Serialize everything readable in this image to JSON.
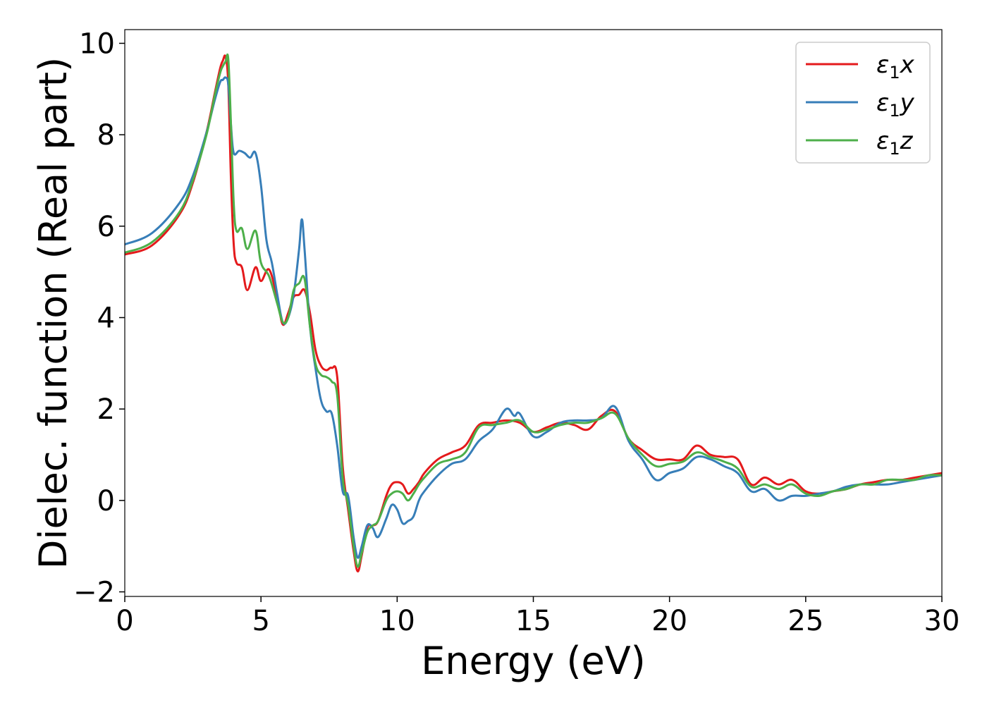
{
  "chart_data": {
    "type": "line",
    "title": "",
    "xlabel": "Energy (eV)",
    "ylabel": "Dielec. function (Real part)",
    "xlim": [
      0,
      30
    ],
    "ylim": [
      -2.1,
      10.3
    ],
    "xticks": [
      0,
      5,
      10,
      15,
      20,
      25,
      30
    ],
    "yticks": [
      -2,
      0,
      2,
      4,
      6,
      8,
      10
    ],
    "xtick_labels": [
      "0",
      "5",
      "10",
      "15",
      "20",
      "25",
      "30"
    ],
    "ytick_labels": [
      "−2",
      "0",
      "2",
      "4",
      "6",
      "8",
      "10"
    ],
    "grid": false,
    "legend": "top-right",
    "series": [
      {
        "name": "ε1x",
        "legend_main": "ε",
        "legend_sub": "1",
        "legend_var": "x",
        "color": "#e41a1c",
        "x": [
          0,
          1,
          2,
          2.5,
          3,
          3.3,
          3.5,
          3.6,
          3.7,
          3.8,
          3.9,
          4.0,
          4.1,
          4.3,
          4.5,
          4.8,
          5.0,
          5.3,
          5.6,
          5.8,
          6.0,
          6.2,
          6.4,
          6.6,
          6.8,
          7.0,
          7.2,
          7.4,
          7.6,
          7.8,
          8.0,
          8.2,
          8.4,
          8.55,
          8.7,
          8.9,
          9.1,
          9.3,
          9.6,
          9.8,
          10.0,
          10.2,
          10.4,
          10.6,
          10.8,
          11.0,
          11.5,
          12.0,
          12.5,
          13.0,
          13.5,
          14.0,
          14.5,
          15.0,
          15.5,
          16.0,
          16.5,
          17.0,
          17.5,
          18.0,
          18.5,
          19.0,
          19.5,
          20.0,
          20.5,
          21.0,
          21.5,
          22.0,
          22.5,
          23.0,
          23.5,
          24.0,
          24.5,
          25.0,
          25.5,
          26.0,
          26.5,
          27.0,
          27.5,
          28.0,
          28.5,
          29.0,
          29.5,
          30.0
        ],
        "y": [
          5.38,
          5.58,
          6.25,
          6.95,
          8.05,
          8.9,
          9.45,
          9.62,
          9.7,
          9.1,
          7.0,
          5.6,
          5.2,
          5.1,
          4.6,
          5.1,
          4.8,
          5.05,
          4.4,
          3.85,
          4.1,
          4.45,
          4.5,
          4.6,
          4.1,
          3.3,
          2.95,
          2.85,
          2.9,
          2.7,
          0.75,
          -0.2,
          -1.1,
          -1.55,
          -1.2,
          -0.6,
          -0.55,
          -0.45,
          0.1,
          0.35,
          0.4,
          0.35,
          0.15,
          0.25,
          0.4,
          0.6,
          0.9,
          1.05,
          1.2,
          1.65,
          1.7,
          1.75,
          1.7,
          1.5,
          1.6,
          1.7,
          1.65,
          1.55,
          1.85,
          1.95,
          1.35,
          1.1,
          0.9,
          0.9,
          0.9,
          1.2,
          1.0,
          0.95,
          0.9,
          0.35,
          0.5,
          0.35,
          0.45,
          0.2,
          0.15,
          0.2,
          0.25,
          0.35,
          0.4,
          0.45,
          0.45,
          0.5,
          0.55,
          0.6
        ]
      },
      {
        "name": "ε1y",
        "legend_main": "ε",
        "legend_sub": "1",
        "legend_var": "y",
        "color": "#377eb8",
        "x": [
          0,
          1,
          2,
          2.5,
          3,
          3.3,
          3.5,
          3.6,
          3.7,
          3.8,
          3.9,
          4.0,
          4.2,
          4.4,
          4.6,
          4.8,
          5.0,
          5.2,
          5.4,
          5.6,
          5.8,
          6.0,
          6.2,
          6.4,
          6.5,
          6.6,
          6.8,
          7.0,
          7.2,
          7.4,
          7.6,
          7.8,
          8.0,
          8.2,
          8.4,
          8.55,
          8.7,
          8.9,
          9.1,
          9.3,
          9.6,
          9.8,
          10.0,
          10.2,
          10.4,
          10.6,
          10.8,
          11.0,
          11.5,
          12.0,
          12.5,
          13.0,
          13.5,
          14.0,
          14.3,
          14.5,
          15.0,
          15.5,
          16.0,
          16.5,
          17.0,
          17.5,
          18.0,
          18.5,
          19.0,
          19.5,
          20.0,
          20.5,
          21.0,
          21.5,
          22.0,
          22.5,
          23.0,
          23.5,
          24.0,
          24.5,
          25.0,
          25.5,
          26.0,
          26.5,
          27.0,
          27.5,
          28.0,
          28.5,
          29.0,
          29.5,
          30.0
        ],
        "y": [
          5.6,
          5.85,
          6.5,
          7.1,
          8.05,
          8.75,
          9.15,
          9.2,
          9.25,
          9.1,
          8.2,
          7.6,
          7.65,
          7.6,
          7.5,
          7.6,
          6.9,
          5.7,
          5.2,
          4.5,
          3.9,
          4.0,
          4.5,
          5.5,
          6.15,
          5.5,
          3.8,
          2.9,
          2.2,
          1.95,
          1.9,
          1.2,
          0.2,
          0.1,
          -0.8,
          -1.25,
          -1.0,
          -0.55,
          -0.6,
          -0.8,
          -0.4,
          -0.1,
          -0.2,
          -0.5,
          -0.45,
          -0.35,
          0.0,
          0.2,
          0.55,
          0.8,
          0.9,
          1.3,
          1.55,
          2.0,
          1.85,
          1.9,
          1.4,
          1.5,
          1.7,
          1.75,
          1.75,
          1.8,
          2.05,
          1.3,
          0.9,
          0.45,
          0.6,
          0.7,
          0.95,
          0.9,
          0.75,
          0.6,
          0.2,
          0.25,
          0.0,
          0.1,
          0.1,
          0.15,
          0.2,
          0.3,
          0.35,
          0.35,
          0.35,
          0.4,
          0.45,
          0.5,
          0.55
        ]
      },
      {
        "name": "ε1z",
        "legend_main": "ε",
        "legend_sub": "1",
        "legend_var": "z",
        "color": "#4daf4a",
        "x": [
          0,
          1,
          2,
          2.5,
          3,
          3.3,
          3.5,
          3.6,
          3.7,
          3.8,
          3.9,
          4.0,
          4.1,
          4.3,
          4.5,
          4.8,
          5.0,
          5.3,
          5.6,
          5.8,
          6.0,
          6.2,
          6.4,
          6.6,
          6.8,
          7.0,
          7.2,
          7.4,
          7.6,
          7.8,
          8.0,
          8.2,
          8.4,
          8.55,
          8.7,
          8.9,
          9.1,
          9.3,
          9.6,
          9.8,
          10.0,
          10.2,
          10.4,
          10.6,
          10.8,
          11.0,
          11.5,
          12.0,
          12.5,
          13.0,
          13.5,
          14.0,
          14.5,
          15.0,
          15.5,
          16.0,
          16.5,
          17.0,
          17.5,
          18.0,
          18.5,
          19.0,
          19.5,
          20.0,
          20.5,
          21.0,
          21.5,
          22.0,
          22.5,
          23.0,
          23.5,
          24.0,
          24.5,
          25.0,
          25.5,
          26.0,
          26.5,
          27.0,
          27.5,
          28.0,
          28.5,
          29.0,
          29.5,
          30.0
        ],
        "y": [
          5.42,
          5.65,
          6.3,
          7.0,
          8.0,
          8.85,
          9.35,
          9.5,
          9.6,
          9.65,
          8.2,
          6.5,
          5.9,
          5.95,
          5.5,
          5.9,
          5.2,
          4.9,
          4.3,
          3.9,
          4.0,
          4.6,
          4.75,
          4.85,
          3.8,
          3.0,
          2.75,
          2.7,
          2.6,
          2.3,
          0.5,
          -0.1,
          -1.0,
          -1.45,
          -1.15,
          -0.7,
          -0.55,
          -0.45,
          0.0,
          0.15,
          0.2,
          0.15,
          0.0,
          0.15,
          0.35,
          0.5,
          0.8,
          0.9,
          1.05,
          1.6,
          1.65,
          1.7,
          1.75,
          1.5,
          1.55,
          1.65,
          1.7,
          1.7,
          1.8,
          1.9,
          1.35,
          1.0,
          0.75,
          0.8,
          0.85,
          1.05,
          0.95,
          0.85,
          0.7,
          0.3,
          0.35,
          0.25,
          0.35,
          0.15,
          0.1,
          0.2,
          0.25,
          0.35,
          0.35,
          0.45,
          0.45,
          0.45,
          0.55,
          0.55
        ]
      }
    ]
  }
}
